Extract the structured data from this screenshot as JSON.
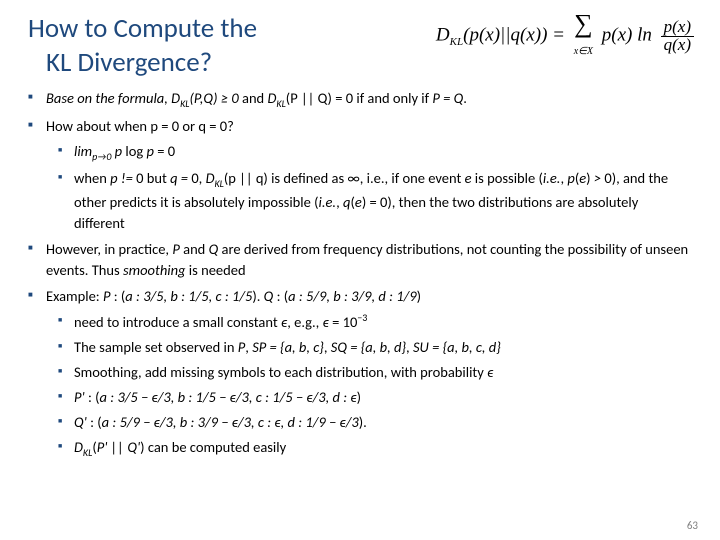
{
  "title_line1": "How to Compute the",
  "title_line2": "KL Divergence?",
  "formula": {
    "lhs_sub": "KL",
    "px": "p(x)",
    "qx": "q(x)"
  },
  "bullets": {
    "b1_pre": "Base on the formula, D",
    "b1_mid1": "(P,Q) ≥ 0",
    "b1_mid2": " and ",
    "b1_mid3": "D",
    "b1_mid4": "(P || Q) = 0 if and only if ",
    "b1_end": "P = Q",
    "b2": "How about when p = 0 or q = 0?",
    "b2s1_a": "lim",
    "b2s1_b": "p→0",
    "b2s1_c": " p",
    "b2s1_d": " log ",
    "b2s1_e": "p",
    "b2s1_f": " = 0",
    "b2s2_a": "when ",
    "b2s2_b": "p != ",
    "b2s2_c": "0 but ",
    "b2s2_d": "q = ",
    "b2s2_e": "0, ",
    "b2s2_f": "D",
    "b2s2_g": "(p || q) ",
    "b2s2_h": "is defined as ∞, i.e., if one event ",
    "b2s2_i": "e",
    "b2s2_j": " is possible (",
    "b2s2_k": "i.e.",
    "b2s2_l": ", ",
    "b2s2_m": "p",
    "b2s2_n": "(",
    "b2s2_o": "e",
    "b2s2_p": ") ",
    "b2s2_q": "> ",
    "b2s2_r": "0), and the other predicts it is absolutely impossible (",
    "b2s2_s": "i.e.",
    "b2s2_t": ", ",
    "b2s2_u": "q",
    "b2s2_v": "(",
    "b2s2_w": "e",
    "b2s2_x": ") = 0), then the two distributions are absolutely different",
    "b3_a": "However, in practice, ",
    "b3_b": "P",
    "b3_c": " and ",
    "b3_d": "Q",
    "b3_e": " are derived from frequency distributions, not counting the possibility of unseen events. Thus ",
    "b3_f": "smoothing",
    "b3_g": " is needed",
    "b4_a": "Example: ",
    "b4_b": "P ",
    "b4_c": ": (",
    "b4_d": "a : 3/5, b : 1/5, c : 1/5",
    "b4_e": ").  ",
    "b4_f": "Q ",
    "b4_g": ": (",
    "b4_h": "a : 5/9, b : 3/9, d : 1/9",
    "b4_i": ")",
    "b4s1_a": "need to introduce a small constant ",
    "b4s1_b": "ϵ",
    "b4s1_c": ", e.g., ",
    "b4s1_d": "ϵ",
    "b4s1_e": " = 10",
    "b4s1_f": "−3",
    "b4s2_a": "The sample set observed in ",
    "b4s2_b": "P",
    "b4s2_c": ", ",
    "b4s2_d": "SP = {a, b, c}",
    "b4s2_e": ",  ",
    "b4s2_f": "SQ = {a, b, d}",
    "b4s2_g": ",  ",
    "b4s2_h": "SU = {a, b, c, d}",
    "b4s3": "Smoothing, add missing symbols to each distribution, with probability ",
    "b4s3_e": "ϵ",
    "b4s4_a": "P' ",
    "b4s4_b": ": (",
    "b4s4_c": "a : 3/5 − ϵ/3, b : 1/5 − ϵ/3, c : 1/5 − ϵ/3, d : ϵ",
    "b4s4_d": ")",
    "b4s5_a": "Q' ",
    "b4s5_b": ": (",
    "b4s5_c": "a : 5/9 − ϵ/3, b : 3/9 − ϵ/3, c : ϵ, d : 1/9 − ϵ/3",
    "b4s5_d": ").",
    "b4s6_a": "D",
    "b4s6_b": "(",
    "b4s6_c": "P' || Q'",
    "b4s6_d": ") can be computed easily"
  },
  "pagenum": "63",
  "KL": "KL"
}
